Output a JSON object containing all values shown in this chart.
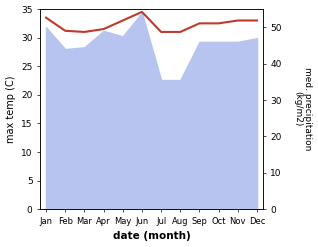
{
  "months": [
    "Jan",
    "Feb",
    "Mar",
    "Apr",
    "May",
    "Jun",
    "Jul",
    "Aug",
    "Sep",
    "Oct",
    "Nov",
    "Dec"
  ],
  "month_positions": [
    0,
    1,
    2,
    3,
    4,
    5,
    6,
    7,
    8,
    9,
    10,
    11
  ],
  "max_temp": [
    33.5,
    31.2,
    31.0,
    31.5,
    33.0,
    34.5,
    31.0,
    31.0,
    32.5,
    32.5,
    33.0,
    33.0
  ],
  "precipitation": [
    50.0,
    44.0,
    44.5,
    49.0,
    47.5,
    54.0,
    35.5,
    35.5,
    46.0,
    46.0,
    46.0,
    47.0
  ],
  "precip_color": "#b8c4f0",
  "temp_color": "#c0392b",
  "left_ylim": [
    0,
    35
  ],
  "right_ylim": [
    0,
    55
  ],
  "left_yticks": [
    0,
    5,
    10,
    15,
    20,
    25,
    30,
    35
  ],
  "right_yticks": [
    0,
    10,
    20,
    30,
    40,
    50
  ],
  "ylabel_left": "max temp (C)",
  "ylabel_right": "med. precipitation\n(kg/m2)",
  "xlabel": "date (month)",
  "title": "",
  "bg_color": "#ffffff"
}
